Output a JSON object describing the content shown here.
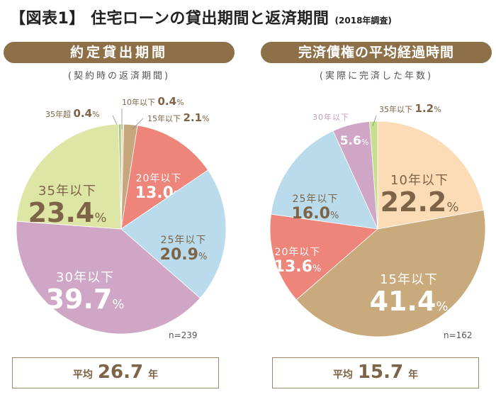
{
  "title": {
    "main": "【図表1】 住宅ローンの貸出期間と返済期間",
    "sub": "(2018年調査)"
  },
  "panels": [
    {
      "header": "約定貸出期間",
      "note": "(契約時の返済期間)",
      "n_label": "n=239",
      "avg": {
        "label": "平均",
        "value": "26.7",
        "unit": "年"
      }
    },
    {
      "header": "完済債権の平均経過時間",
      "note": "(実際に完済した年数)",
      "n_label": "n=162",
      "avg": {
        "label": "平均",
        "value": "15.7",
        "unit": "年"
      }
    }
  ],
  "chart_data": [
    {
      "type": "pie",
      "title": "約定貸出期間",
      "subtitle": "(契約時の返済期間)",
      "n": 239,
      "start": "12 o'clock, clockwise",
      "slices": [
        {
          "label": "10年以下",
          "value": 0.4,
          "color": "#f6d9ab"
        },
        {
          "label": "15年以下",
          "value": 2.1,
          "color": "#c7a77d"
        },
        {
          "label": "20年以下",
          "value": 13.0,
          "color": "#ee857a"
        },
        {
          "label": "25年以下",
          "value": 20.9,
          "color": "#b9dbeb"
        },
        {
          "label": "30年以下",
          "value": 39.7,
          "color": "#cfa6c5"
        },
        {
          "label": "35年以下",
          "value": 23.4,
          "color": "#dde6a4"
        },
        {
          "label": "35年超",
          "value": 0.4,
          "color": "#9fc686"
        }
      ],
      "average": "26.7年"
    },
    {
      "type": "pie",
      "title": "完済債権の平均経過時間",
      "subtitle": "(実際に完済した年数)",
      "n": 162,
      "start": "12 o'clock, clockwise",
      "slices": [
        {
          "label": "10年以下",
          "value": 22.2,
          "color": "#fcdcb7"
        },
        {
          "label": "15年以下",
          "value": 41.4,
          "color": "#c9aa7c"
        },
        {
          "label": "20年以下",
          "value": 13.6,
          "color": "#ee857a"
        },
        {
          "label": "25年以下",
          "value": 16.0,
          "color": "#b9dbeb"
        },
        {
          "label": "30年以下",
          "value": 5.6,
          "color": "#cfa6c5"
        },
        {
          "label": "35年以下",
          "value": 1.2,
          "color": "#c7df8e"
        }
      ],
      "average": "15.7年"
    }
  ]
}
